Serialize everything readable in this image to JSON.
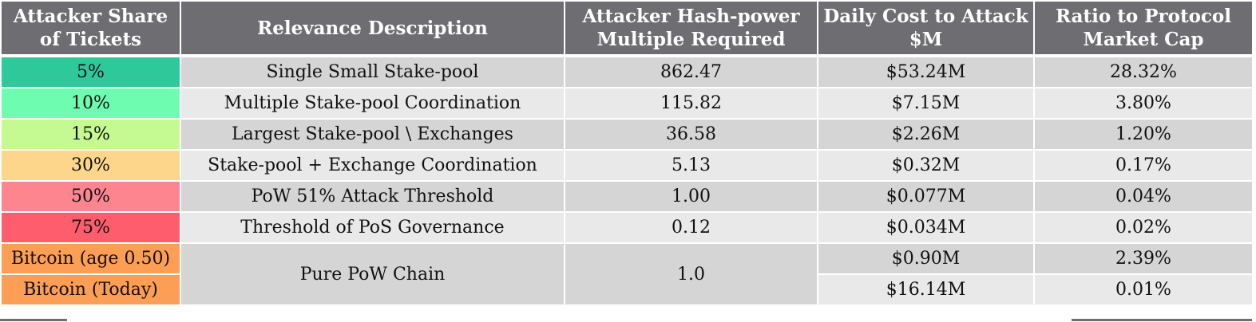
{
  "table": {
    "headers": [
      "Attacker Share of Tickets",
      "Relevance Description",
      "Attacker Hash-power Multiple Required",
      "Daily Cost to Attack $M",
      "Ratio to Protocol Market Cap"
    ],
    "rows": [
      {
        "share": "5%",
        "description": "Single Small Stake-pool",
        "multiple": "862.47",
        "cost": "$53.24M",
        "ratio": "28.32%",
        "color": "#2ec99a"
      },
      {
        "share": "10%",
        "description": "Multiple Stake-pool Coordination",
        "multiple": "115.82",
        "cost": "$7.15M",
        "ratio": "3.80%",
        "color": "#6efdb0"
      },
      {
        "share": "15%",
        "description": "Largest Stake-pool \\ Exchanges",
        "multiple": "36.58",
        "cost": "$2.26M",
        "ratio": "1.20%",
        "color": "#c5fa92"
      },
      {
        "share": "30%",
        "description": "Stake-pool + Exchange Coordination",
        "multiple": "5.13",
        "cost": "$0.32M",
        "ratio": "0.17%",
        "color": "#fdd68c"
      },
      {
        "share": "50%",
        "description": "PoW 51% Attack Threshold",
        "multiple": "1.00",
        "cost": "$0.077M",
        "ratio": "0.04%",
        "color": "#fd8590"
      },
      {
        "share": "75%",
        "description": "Threshold of PoS Governance",
        "multiple": "0.12",
        "cost": "$0.034M",
        "ratio": "0.02%",
        "color": "#fd5d6c"
      }
    ],
    "bitcoin": {
      "description": "Pure PoW Chain",
      "multiple": "1.0",
      "rows": [
        {
          "share": "Bitcoin (age 0.50)",
          "cost": "$0.90M",
          "ratio": "2.39%",
          "color": "#fd9e56"
        },
        {
          "share": "Bitcoin (Today)",
          "cost": "$16.14M",
          "ratio": "0.01%",
          "color": "#fd9e56"
        }
      ]
    }
  }
}
